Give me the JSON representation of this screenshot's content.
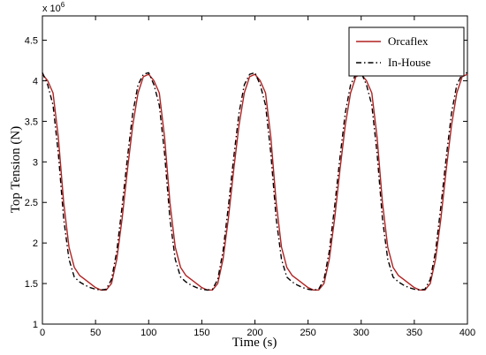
{
  "chart_data": {
    "type": "line",
    "xlabel": "Time (s)",
    "ylabel": "Top Tension (N)",
    "y_multiplier_label": "x 10",
    "y_multiplier_exponent": "6",
    "xlim": [
      0,
      400
    ],
    "ylim": [
      1.0,
      4.8
    ],
    "x_ticks": [
      "0",
      "50",
      "100",
      "150",
      "200",
      "250",
      "300",
      "350",
      "400"
    ],
    "y_ticks": [
      "1",
      "1.5",
      "2",
      "2.5",
      "3",
      "3.5",
      "4",
      "4.5"
    ],
    "grid": false,
    "legend_position": "top-right",
    "colors": {
      "orcaflex": "#b22222",
      "inhouse": "#000000"
    },
    "series": [
      {
        "name": "Orcaflex",
        "style": "solid",
        "x": [
          0,
          5,
          10,
          15,
          20,
          25,
          30,
          35,
          40,
          45,
          50,
          55,
          60,
          65,
          70,
          75,
          80,
          85,
          90,
          95,
          100,
          105,
          110,
          115,
          120,
          125,
          130,
          135,
          140,
          145,
          150,
          155,
          160,
          165,
          170,
          175,
          180,
          185,
          190,
          195,
          200,
          205,
          210,
          215,
          220,
          225,
          230,
          235,
          240,
          245,
          250,
          255,
          260,
          265,
          270,
          275,
          280,
          285,
          290,
          295,
          300,
          305,
          310,
          315,
          320,
          325,
          330,
          335,
          340,
          345,
          350,
          355,
          360,
          365,
          370,
          375,
          380,
          385,
          390,
          395,
          400
        ],
        "values": [
          4.08,
          4.0,
          3.85,
          3.3,
          2.5,
          1.95,
          1.7,
          1.6,
          1.55,
          1.5,
          1.45,
          1.42,
          1.42,
          1.5,
          1.8,
          2.3,
          2.9,
          3.45,
          3.85,
          4.05,
          4.08,
          4.0,
          3.85,
          3.3,
          2.5,
          1.95,
          1.7,
          1.6,
          1.55,
          1.5,
          1.45,
          1.42,
          1.42,
          1.5,
          1.8,
          2.3,
          2.9,
          3.45,
          3.85,
          4.05,
          4.08,
          4.0,
          3.85,
          3.3,
          2.5,
          1.95,
          1.7,
          1.6,
          1.55,
          1.5,
          1.45,
          1.42,
          1.42,
          1.5,
          1.8,
          2.3,
          2.9,
          3.45,
          3.85,
          4.05,
          4.08,
          4.0,
          3.85,
          3.3,
          2.5,
          1.95,
          1.7,
          1.6,
          1.55,
          1.5,
          1.45,
          1.42,
          1.42,
          1.5,
          1.8,
          2.3,
          2.9,
          3.45,
          3.85,
          4.05,
          4.08
        ]
      },
      {
        "name": "In-House",
        "style": "dash-dot",
        "x": [
          0,
          5,
          10,
          15,
          20,
          25,
          30,
          35,
          40,
          45,
          50,
          55,
          60,
          65,
          70,
          75,
          80,
          85,
          90,
          95,
          100,
          105,
          110,
          115,
          120,
          125,
          130,
          135,
          140,
          145,
          150,
          155,
          160,
          165,
          170,
          175,
          180,
          185,
          190,
          195,
          200,
          205,
          210,
          215,
          220,
          225,
          230,
          235,
          240,
          245,
          250,
          255,
          260,
          265,
          270,
          275,
          280,
          285,
          290,
          295,
          300,
          305,
          310,
          315,
          320,
          325,
          330,
          335,
          340,
          345,
          350,
          355,
          360,
          365,
          370,
          375,
          380,
          385,
          390,
          395,
          400
        ],
        "values": [
          4.1,
          3.95,
          3.7,
          3.1,
          2.3,
          1.8,
          1.58,
          1.52,
          1.48,
          1.45,
          1.43,
          1.42,
          1.43,
          1.55,
          1.9,
          2.45,
          3.05,
          3.6,
          3.95,
          4.08,
          4.1,
          3.95,
          3.7,
          3.1,
          2.3,
          1.8,
          1.58,
          1.52,
          1.48,
          1.45,
          1.43,
          1.42,
          1.43,
          1.55,
          1.9,
          2.45,
          3.05,
          3.6,
          3.95,
          4.08,
          4.1,
          3.95,
          3.7,
          3.1,
          2.3,
          1.8,
          1.58,
          1.52,
          1.48,
          1.45,
          1.43,
          1.42,
          1.43,
          1.55,
          1.9,
          2.45,
          3.05,
          3.6,
          3.95,
          4.08,
          4.1,
          3.95,
          3.7,
          3.1,
          2.3,
          1.8,
          1.58,
          1.52,
          1.48,
          1.45,
          1.43,
          1.42,
          1.43,
          1.55,
          1.9,
          2.45,
          3.05,
          3.6,
          3.95,
          4.08,
          4.1
        ]
      }
    ]
  }
}
